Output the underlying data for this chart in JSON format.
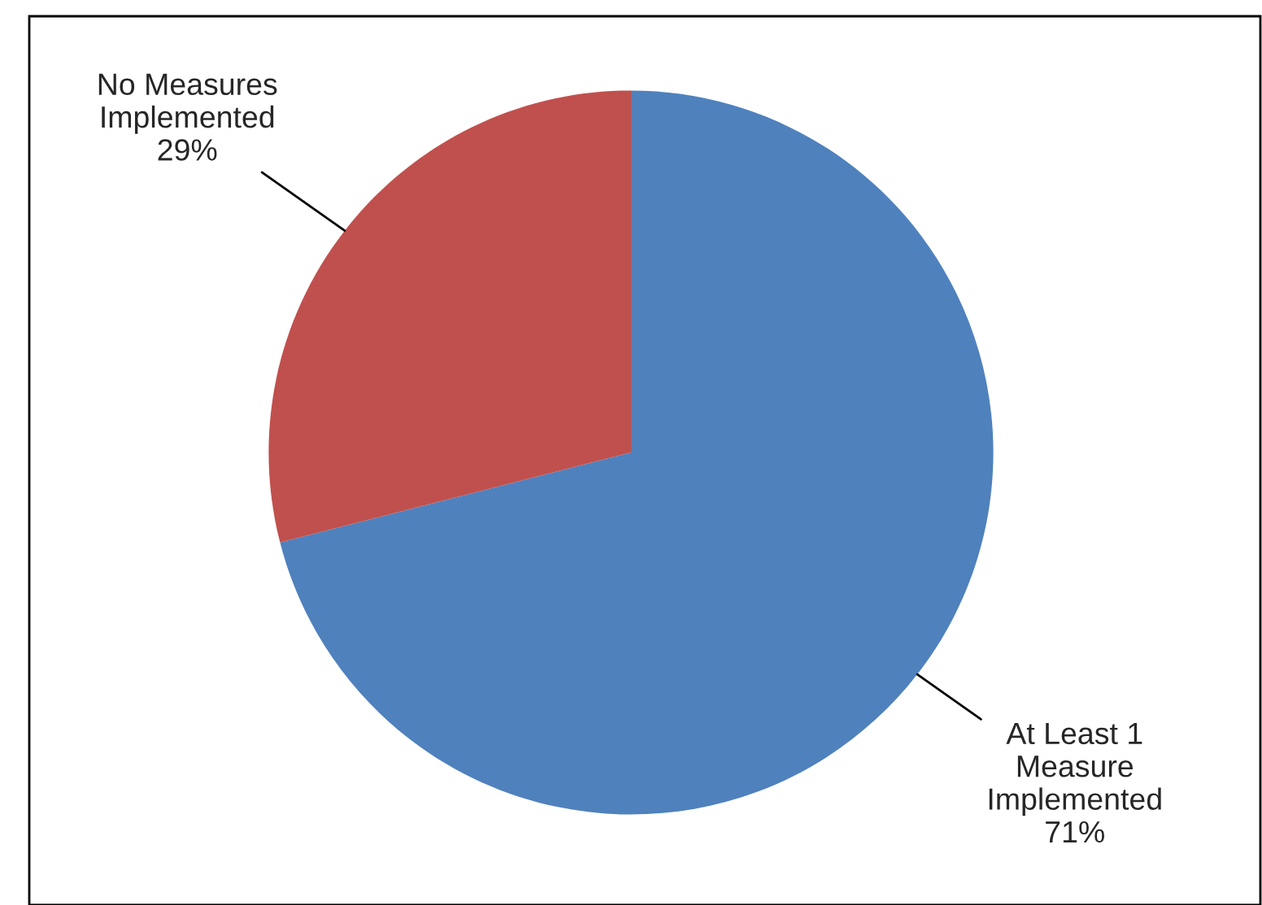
{
  "chart_data": {
    "type": "pie",
    "categories": [
      "At Least 1 Measure Implemented",
      "No Measures Implemented"
    ],
    "values": [
      71,
      29
    ],
    "value_labels": [
      "71%",
      "29%"
    ],
    "colors": [
      "#4f81bd",
      "#c0504d"
    ],
    "legend": false
  }
}
